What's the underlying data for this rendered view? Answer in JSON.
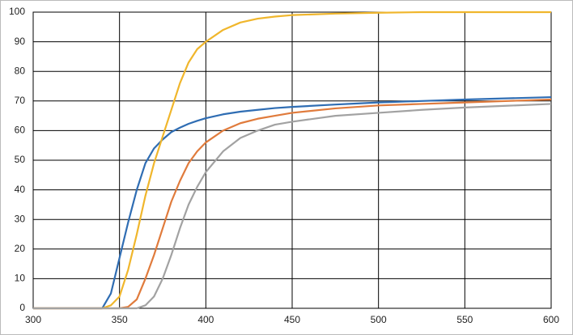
{
  "chart_data": {
    "type": "line",
    "x": [
      300,
      320,
      340,
      345,
      350,
      355,
      360,
      365,
      370,
      375,
      380,
      385,
      390,
      395,
      400,
      410,
      420,
      430,
      440,
      450,
      475,
      500,
      525,
      550,
      575,
      600
    ],
    "series": [
      {
        "color": "#2f6db3",
        "values": [
          0,
          0,
          0,
          5,
          17,
          29,
          40,
          49,
          54,
          57,
          59.5,
          61,
          62.3,
          63.3,
          64.2,
          65.5,
          66.4,
          67,
          67.6,
          68,
          68.8,
          69.5,
          70,
          70.5,
          70.9,
          71.3
        ]
      },
      {
        "color": "#f0b62c",
        "values": [
          0,
          0,
          0,
          1,
          4,
          13,
          25,
          38,
          49,
          58,
          67,
          76,
          83,
          87.5,
          90,
          94,
          96.5,
          97.8,
          98.5,
          99,
          99.5,
          99.8,
          100,
          100,
          100,
          100
        ]
      },
      {
        "color": "#e07b3c",
        "values": [
          0,
          0,
          0,
          0,
          0,
          0.5,
          3,
          10,
          18,
          27,
          36,
          43,
          49,
          53,
          56,
          60,
          62.5,
          64,
          65,
          66,
          67.5,
          68.5,
          69,
          69.5,
          70,
          70.5
        ]
      },
      {
        "color": "#a2a2a2",
        "values": [
          0,
          0,
          0,
          0,
          0,
          0,
          0,
          1,
          4,
          10,
          18,
          27,
          35,
          41,
          46,
          53,
          57.5,
          60,
          62,
          63,
          65,
          66,
          67,
          67.8,
          68.4,
          69
        ]
      }
    ],
    "xlim": [
      300,
      600
    ],
    "ylim": [
      0,
      100
    ],
    "xticks": [
      300,
      350,
      400,
      450,
      500,
      550,
      600
    ],
    "yticks": [
      0,
      10,
      20,
      30,
      40,
      50,
      60,
      70,
      80,
      90,
      100
    ],
    "grid": true
  }
}
